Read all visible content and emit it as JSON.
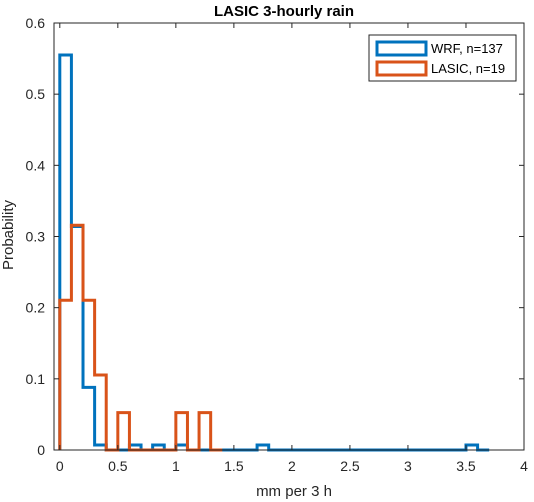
{
  "chart_data": {
    "type": "histogram",
    "title": "LASIC 3-hourly rain",
    "xlabel": "mm per 3 h",
    "ylabel": "Probability",
    "xlim": [
      -0.05,
      4.0
    ],
    "ylim": [
      0,
      0.6
    ],
    "xticks": [
      0,
      0.5,
      1,
      1.5,
      2,
      2.5,
      3,
      3.5,
      4
    ],
    "xtick_labels": [
      "0",
      "0.5",
      "1",
      "1.5",
      "2",
      "2.5",
      "3",
      "3.5",
      "4"
    ],
    "yticks": [
      0,
      0.1,
      0.2,
      0.3,
      0.4,
      0.5,
      0.6
    ],
    "ytick_labels": [
      "0",
      "0.1",
      "0.2",
      "0.3",
      "0.4",
      "0.5",
      "0.6"
    ],
    "grid": false,
    "legend_position": "top-right",
    "series": [
      {
        "name": "WRF, n=137",
        "color": "#0072BD",
        "bin_width": 0.1,
        "bin_starts": [
          0.0,
          0.1,
          0.2,
          0.3,
          0.4,
          0.5,
          0.6,
          0.7,
          0.8,
          0.9,
          1.0,
          1.1,
          1.2,
          1.3,
          1.4,
          1.5,
          1.6,
          1.7,
          1.8,
          1.9,
          2.0,
          2.1,
          2.2,
          2.3,
          2.4,
          2.5,
          2.6,
          2.7,
          2.8,
          2.9,
          3.0,
          3.1,
          3.2,
          3.3,
          3.4,
          3.5,
          3.6
        ],
        "values": [
          0.555,
          0.314,
          0.088,
          0.007,
          0,
          0,
          0.007,
          0,
          0.007,
          0,
          0.007,
          0,
          0,
          0,
          0,
          0,
          0,
          0.007,
          0,
          0,
          0,
          0,
          0,
          0,
          0,
          0,
          0,
          0,
          0,
          0,
          0,
          0,
          0,
          0,
          0,
          0.007,
          0
        ]
      },
      {
        "name": "LASIC, n=19",
        "color": "#D95319",
        "bin_width": 0.1,
        "bin_starts": [
          0.0,
          0.1,
          0.2,
          0.3,
          0.4,
          0.5,
          0.6,
          0.7,
          0.8,
          0.9,
          1.0,
          1.1,
          1.2,
          1.3
        ],
        "values": [
          0.2105,
          0.3158,
          0.2105,
          0.1053,
          0,
          0.0526,
          0,
          0,
          0,
          0,
          0.0526,
          0,
          0.0526,
          0
        ]
      }
    ]
  }
}
